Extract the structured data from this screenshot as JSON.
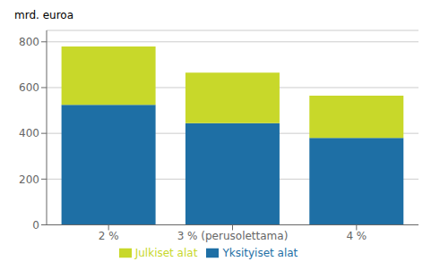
{
  "chart_data": {
    "type": "bar",
    "stacked": true,
    "categories": [
      "2 %",
      "3 % (perusolettama)",
      "4 %"
    ],
    "series": [
      {
        "name": "Yksityiset alat",
        "color": "#1e6fa5",
        "values": [
          525,
          445,
          380
        ]
      },
      {
        "name": "Julkiset alat",
        "color": "#c8d82a",
        "values": [
          255,
          220,
          185
        ]
      }
    ],
    "ylabel": "mrd. euroa",
    "ylim": [
      0,
      850
    ],
    "yticks": [
      0,
      200,
      400,
      600,
      800
    ],
    "grid": true,
    "legend": "bottom"
  }
}
